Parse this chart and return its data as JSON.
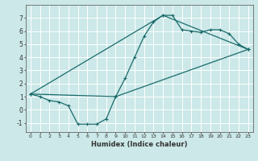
{
  "title": "",
  "xlabel": "Humidex (Indice chaleur)",
  "ylabel": "",
  "bg_color": "#cce8e8",
  "grid_color": "#ffffff",
  "line_color": "#1a6b6b",
  "xlim": [
    -0.5,
    23.5
  ],
  "ylim": [
    -1.7,
    8.0
  ],
  "xticks": [
    0,
    1,
    2,
    3,
    4,
    5,
    6,
    7,
    8,
    9,
    10,
    11,
    12,
    13,
    14,
    15,
    16,
    17,
    18,
    19,
    20,
    21,
    22,
    23
  ],
  "yticks": [
    -1,
    0,
    1,
    2,
    3,
    4,
    5,
    6,
    7
  ],
  "curve1_x": [
    0,
    1,
    2,
    3,
    4,
    5,
    6,
    7,
    8,
    9,
    10,
    11,
    12,
    13,
    14,
    15,
    16,
    17,
    18,
    19,
    20,
    21,
    22,
    23
  ],
  "curve1_y": [
    1.2,
    1.0,
    0.7,
    0.6,
    0.3,
    -1.1,
    -1.1,
    -1.1,
    -0.7,
    1.0,
    2.4,
    4.0,
    5.6,
    6.7,
    7.2,
    7.2,
    6.1,
    6.0,
    5.9,
    6.1,
    6.1,
    5.8,
    5.0,
    4.6
  ],
  "curve2_x": [
    0,
    14,
    23
  ],
  "curve2_y": [
    1.2,
    7.2,
    4.6
  ],
  "curve3_x": [
    0,
    9,
    23
  ],
  "curve3_y": [
    1.2,
    1.0,
    4.6
  ]
}
